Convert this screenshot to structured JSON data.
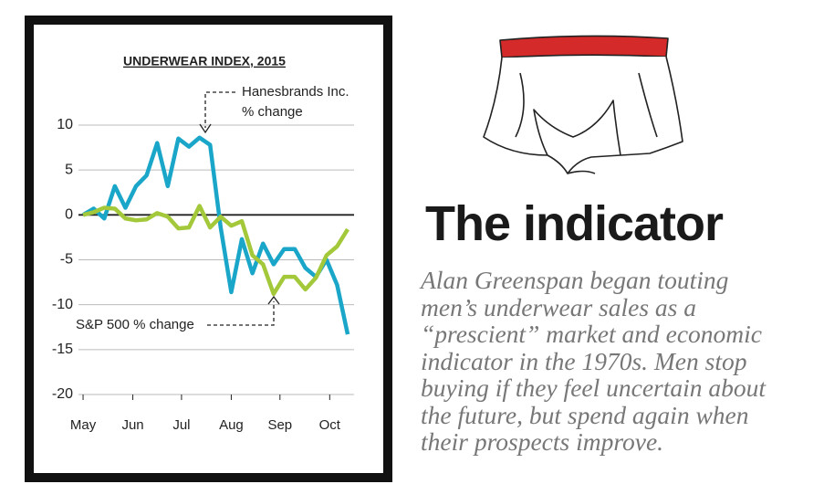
{
  "heading": "The indicator",
  "body_lines": [
    "Alan Greenspan began touting",
    "men’s underwear sales as a",
    "“prescient” market and economic",
    "indicator in the 1970s. Men stop",
    "buying if they feel uncertain about",
    "the future, but spend again when",
    "their prospects improve."
  ],
  "chart_data": {
    "type": "line",
    "title": "UNDERWEAR INDEX, 2015",
    "annotations": [
      "Hanesbrands Inc.",
      "% change",
      "S&P 500 % change"
    ],
    "x": [
      0,
      1,
      2,
      3,
      4,
      5,
      6,
      7,
      8,
      9,
      10,
      11,
      12,
      13,
      14,
      15,
      16,
      17,
      18,
      19,
      20,
      21,
      22,
      23,
      24,
      25
    ],
    "series": [
      {
        "color": "#1aa6c9",
        "values": [
          0,
          0.7,
          -0.4,
          3.2,
          0.8,
          3.2,
          4.4,
          8.0,
          3.2,
          8.5,
          7.6,
          8.6,
          7.8,
          -1.4,
          -8.6,
          -2.7,
          -6.5,
          -3.2,
          -5.5,
          -3.8,
          -3.8,
          -5.9,
          -6.9,
          -5.0,
          -7.8,
          -13.3
        ]
      },
      {
        "color": "#a3c93a",
        "values": [
          0,
          0.3,
          0.8,
          0.7,
          -0.4,
          -0.6,
          -0.5,
          0.2,
          -0.2,
          -1.5,
          -1.4,
          1.0,
          -1.4,
          -0.2,
          -1.2,
          -0.7,
          -4.5,
          -5.5,
          -8.8,
          -6.9,
          -6.9,
          -8.3,
          -7.0,
          -4.5,
          -3.5,
          -1.6
        ]
      }
    ],
    "xlim": [
      -0.4,
      25.6
    ],
    "xticks": [
      {
        "value": 0,
        "label": "May"
      },
      {
        "value": 4.7,
        "label": "Jun"
      },
      {
        "value": 9.3,
        "label": "Jul"
      },
      {
        "value": 14,
        "label": "Aug"
      },
      {
        "value": 18.6,
        "label": "Sep"
      },
      {
        "value": 23.3,
        "label": "Oct"
      }
    ],
    "ylim": [
      -20,
      10
    ],
    "yticks": [
      10,
      5,
      0,
      -5,
      -10,
      -15,
      -20
    ],
    "grid": true
  }
}
